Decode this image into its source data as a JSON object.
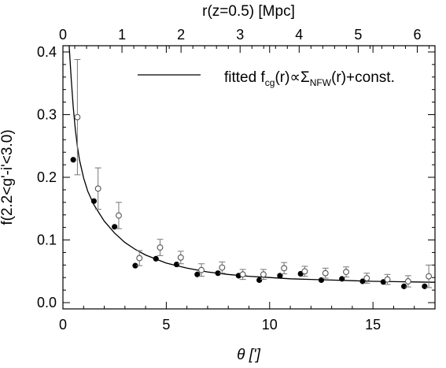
{
  "chart_data": {
    "type": "scatter",
    "xlabel": "θ [']",
    "ylabel": "f(2.2<g'-i'<3.0)",
    "x2label": "r(z=0.5) [Mpc]",
    "xlim": [
      0,
      18
    ],
    "ylim": [
      -0.01,
      0.41
    ],
    "x2lim": [
      0,
      6.3
    ],
    "x_ticks": [
      0,
      5,
      10,
      15
    ],
    "y_ticks": [
      0.0,
      0.1,
      0.2,
      0.3,
      0.4
    ],
    "x2_ticks": [
      0,
      1,
      2,
      3,
      4,
      5,
      6
    ],
    "x_tick_labels": [
      "0",
      "5",
      "10",
      "15"
    ],
    "y_tick_labels": [
      "0.0",
      "0.1",
      "0.2",
      "0.3",
      "0.4"
    ],
    "x2_tick_labels": [
      "0",
      "1",
      "2",
      "3",
      "4",
      "5",
      "6"
    ],
    "legend": {
      "placement": "top-right",
      "parts": [
        "fitted f",
        "cg",
        "(r)∝Σ",
        "NFW",
        "(r)+const."
      ]
    },
    "series": [
      {
        "marker": "filled",
        "color": "#000000",
        "points": [
          {
            "x": 0.5,
            "y": 0.228,
            "err": 0.0
          },
          {
            "x": 1.5,
            "y": 0.162,
            "err": 0.0
          },
          {
            "x": 2.5,
            "y": 0.121,
            "err": 0.0
          },
          {
            "x": 3.5,
            "y": 0.059,
            "err": 0.0
          },
          {
            "x": 4.5,
            "y": 0.07,
            "err": 0.0
          },
          {
            "x": 5.5,
            "y": 0.061,
            "err": 0.0
          },
          {
            "x": 6.5,
            "y": 0.045,
            "err": 0.0
          },
          {
            "x": 7.5,
            "y": 0.047,
            "err": 0.0
          },
          {
            "x": 8.5,
            "y": 0.043,
            "err": 0.0
          },
          {
            "x": 9.5,
            "y": 0.036,
            "err": 0.0
          },
          {
            "x": 10.5,
            "y": 0.043,
            "err": 0.0
          },
          {
            "x": 11.5,
            "y": 0.046,
            "err": 0.0
          },
          {
            "x": 12.5,
            "y": 0.036,
            "err": 0.0
          },
          {
            "x": 13.5,
            "y": 0.038,
            "err": 0.0
          },
          {
            "x": 14.5,
            "y": 0.034,
            "err": 0.0
          },
          {
            "x": 15.5,
            "y": 0.033,
            "err": 0.0
          },
          {
            "x": 16.5,
            "y": 0.026,
            "err": 0.0
          },
          {
            "x": 17.5,
            "y": 0.026,
            "err": 0.0
          }
        ]
      },
      {
        "marker": "open",
        "color": "#555555",
        "points": [
          {
            "x": 0.7,
            "y": 0.296,
            "err": 0.092
          },
          {
            "x": 1.7,
            "y": 0.182,
            "err": 0.033
          },
          {
            "x": 2.7,
            "y": 0.139,
            "err": 0.021
          },
          {
            "x": 3.7,
            "y": 0.071,
            "err": 0.012
          },
          {
            "x": 4.7,
            "y": 0.088,
            "err": 0.013
          },
          {
            "x": 5.7,
            "y": 0.072,
            "err": 0.01
          },
          {
            "x": 6.7,
            "y": 0.052,
            "err": 0.01
          },
          {
            "x": 7.7,
            "y": 0.056,
            "err": 0.009
          },
          {
            "x": 8.7,
            "y": 0.045,
            "err": 0.008
          },
          {
            "x": 9.7,
            "y": 0.045,
            "err": 0.008
          },
          {
            "x": 10.7,
            "y": 0.055,
            "err": 0.009
          },
          {
            "x": 11.7,
            "y": 0.05,
            "err": 0.008
          },
          {
            "x": 12.7,
            "y": 0.047,
            "err": 0.008
          },
          {
            "x": 13.7,
            "y": 0.049,
            "err": 0.008
          },
          {
            "x": 14.7,
            "y": 0.039,
            "err": 0.008
          },
          {
            "x": 15.7,
            "y": 0.037,
            "err": 0.008
          },
          {
            "x": 16.7,
            "y": 0.034,
            "err": 0.009
          },
          {
            "x": 17.7,
            "y": 0.042,
            "err": 0.018
          }
        ]
      }
    ],
    "fit_curve": {
      "x": [
        0.3,
        0.4,
        0.5,
        0.6,
        0.7,
        0.8,
        1.0,
        1.2,
        1.5,
        2.0,
        2.5,
        3.0,
        3.5,
        4.0,
        5.0,
        6.0,
        7.0,
        8.0,
        9.0,
        10.0,
        11.0,
        12.0,
        13.0,
        14.0,
        15.0,
        16.0,
        17.0,
        18.0
      ],
      "y": [
        0.41,
        0.358,
        0.312,
        0.276,
        0.249,
        0.228,
        0.199,
        0.178,
        0.156,
        0.13,
        0.111,
        0.096,
        0.085,
        0.076,
        0.063,
        0.055,
        0.049,
        0.045,
        0.042,
        0.04,
        0.038,
        0.037,
        0.036,
        0.035,
        0.034,
        0.0335,
        0.033,
        0.0325
      ]
    }
  }
}
